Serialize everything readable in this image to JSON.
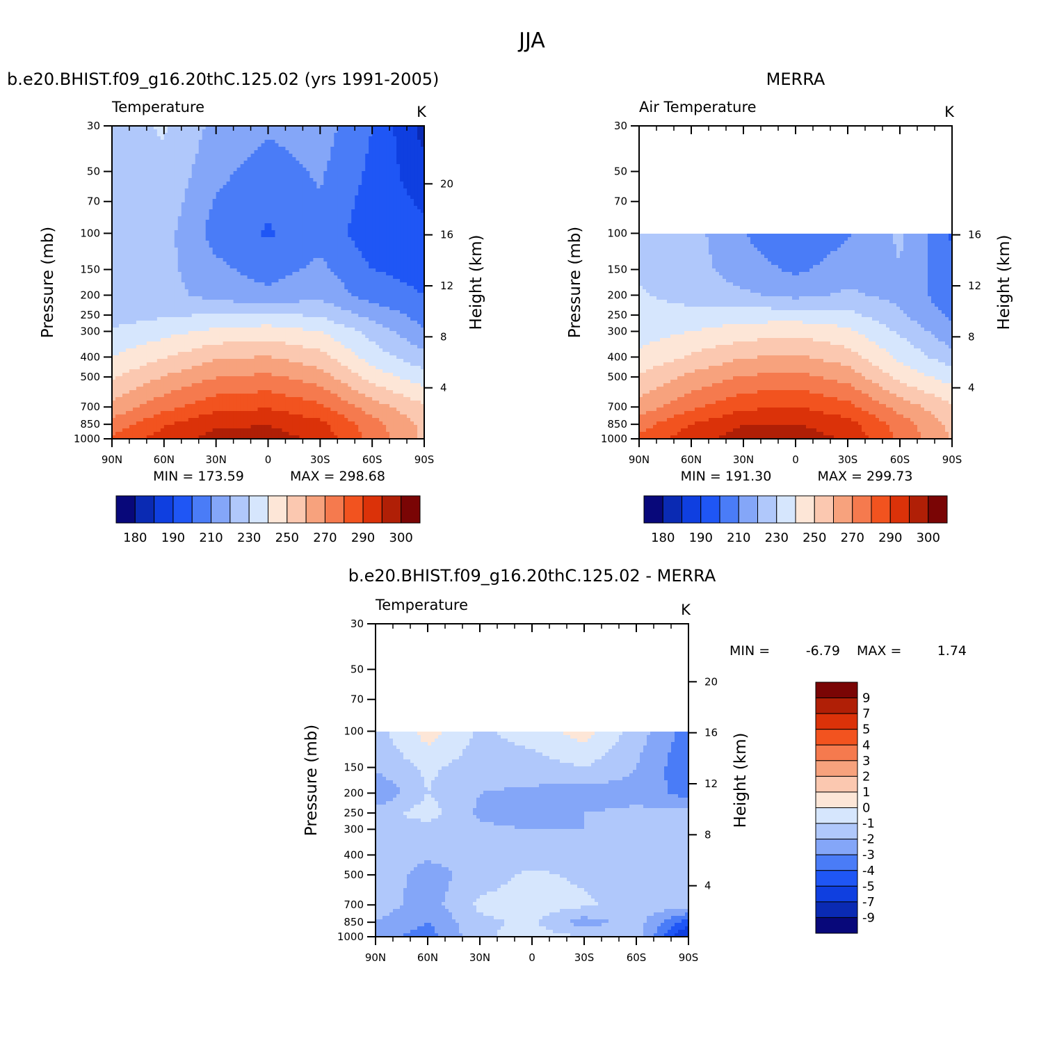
{
  "figure": {
    "title": "JJA"
  },
  "palettes": {
    "abs": [
      "#08087a",
      "#0a2ab3",
      "#0f3fe0",
      "#1f56f5",
      "#4a7cf7",
      "#84a6f8",
      "#b0c8fb",
      "#d6e6fd",
      "#fde6d7",
      "#fbc8b0",
      "#f7a27d",
      "#f57a4e",
      "#f2531f",
      "#db3209",
      "#b01f06",
      "#7a0505"
    ],
    "diff": [
      "#7a0505",
      "#b01f06",
      "#db3209",
      "#f2531f",
      "#f57a4e",
      "#f7a27d",
      "#fbc8b0",
      "#fde6d7",
      "#d6e6fd",
      "#b0c8fb",
      "#84a6f8",
      "#4a7cf7",
      "#1f56f5",
      "#0f3fe0",
      "#0a2ab3",
      "#08087a"
    ]
  },
  "chart_data": [
    {
      "id": "model",
      "type": "heatmap",
      "title": "b.e20.BHIST.f09_g16.20thC.125.02 (yrs 1991-2005)",
      "left_label": "Temperature",
      "right_label": "K",
      "ylabel": "Pressure (mb)",
      "y2label": "Height (km)",
      "xticks": [
        "90N",
        "60N",
        "30N",
        "0",
        "30S",
        "60S",
        "90S"
      ],
      "lat": [
        90,
        60,
        30,
        0,
        -30,
        -60,
        -90
      ],
      "pressure": [
        30,
        50,
        70,
        100,
        150,
        200,
        250,
        300,
        400,
        500,
        700,
        850,
        1000
      ],
      "yticks": [
        "30",
        "50",
        "70",
        "100",
        "150",
        "200",
        "250",
        "300",
        "400",
        "500",
        "700",
        "850",
        "1000"
      ],
      "height_ticks": [
        "20",
        "16",
        "12",
        "8",
        "4"
      ],
      "units": "K",
      "values": [
        [
          228,
          232,
          220,
          215,
          218,
          205,
          184
        ],
        [
          228,
          230,
          216,
          210,
          215,
          203,
          190
        ],
        [
          228,
          228,
          213,
          207,
          213,
          201,
          195
        ],
        [
          227,
          226,
          210,
          204,
          210,
          200,
          198
        ],
        [
          227,
          225,
          216,
          210,
          216,
          205,
          202
        ],
        [
          227,
          226,
          219,
          216,
          220,
          210,
          205
        ],
        [
          228,
          230,
          232,
          233,
          230,
          220,
          210
        ],
        [
          232,
          237,
          242,
          244,
          240,
          228,
          215
        ],
        [
          240,
          248,
          256,
          258,
          252,
          236,
          225
        ],
        [
          248,
          258,
          266,
          268,
          262,
          245,
          235
        ],
        [
          260,
          272,
          281,
          283,
          277,
          262,
          250
        ],
        [
          270,
          283,
          291,
          292,
          286,
          270,
          255
        ],
        [
          276,
          288,
          296,
          297,
          290,
          272,
          256
        ]
      ],
      "cb_levels": [
        "180",
        "190",
        "210",
        "230",
        "250",
        "270",
        "290",
        "300"
      ],
      "min_label": "MIN = 173.59",
      "max_label": "MAX = 298.68"
    },
    {
      "id": "obs",
      "type": "heatmap",
      "title": "MERRA",
      "left_label": "Air Temperature",
      "right_label": "K",
      "ylabel": "Pressure (mb)",
      "y2label": "Height (km)",
      "xticks": [
        "90N",
        "60N",
        "30N",
        "0",
        "30S",
        "60S",
        "90S"
      ],
      "lat": [
        90,
        60,
        30,
        0,
        -30,
        -60,
        -90
      ],
      "pressure": [
        100,
        150,
        200,
        250,
        300,
        400,
        500,
        700,
        850,
        1000
      ],
      "yticks": [
        "30",
        "50",
        "70",
        "100",
        "150",
        "200",
        "250",
        "300",
        "400",
        "500",
        "700",
        "850",
        "1000"
      ],
      "height_ticks": [
        "16",
        "12",
        "8",
        "4"
      ],
      "units": "K",
      "values": [
        [
          230,
          226,
          214,
          206,
          213,
          224,
          204
        ],
        [
          230,
          226,
          218,
          212,
          218,
          222,
          206
        ],
        [
          232,
          228,
          224,
          220,
          224,
          220,
          208
        ],
        [
          234,
          234,
          236,
          236,
          234,
          224,
          212
        ],
        [
          236,
          240,
          244,
          246,
          242,
          230,
          216
        ],
        [
          242,
          250,
          257,
          259,
          253,
          238,
          226
        ],
        [
          250,
          260,
          267,
          269,
          263,
          246,
          236
        ],
        [
          261,
          273,
          282,
          284,
          278,
          263,
          250
        ],
        [
          271,
          284,
          292,
          293,
          287,
          271,
          255
        ],
        [
          277,
          289,
          297,
          298,
          291,
          273,
          257
        ]
      ],
      "cb_levels": [
        "180",
        "190",
        "210",
        "230",
        "250",
        "270",
        "290",
        "300"
      ],
      "min_label": "MIN = 191.30",
      "max_label": "MAX = 299.73"
    },
    {
      "id": "diff",
      "type": "heatmap",
      "title": "b.e20.BHIST.f09_g16.20thC.125.02 - MERRA",
      "left_label": "Temperature",
      "right_label": "K",
      "ylabel": "Pressure (mb)",
      "y2label": "Height (km)",
      "xticks": [
        "90N",
        "60N",
        "30N",
        "0",
        "30S",
        "60S",
        "90S"
      ],
      "lat": [
        90,
        60,
        30,
        0,
        -30,
        -60,
        -90
      ],
      "pressure": [
        100,
        150,
        200,
        250,
        300,
        400,
        500,
        700,
        850,
        1000
      ],
      "yticks": [
        "30",
        "50",
        "70",
        "100",
        "150",
        "200",
        "250",
        "300",
        "400",
        "500",
        "700",
        "850",
        "1000"
      ],
      "height_ticks": [
        "20",
        "16",
        "12",
        "8",
        "4"
      ],
      "units": "K",
      "values": [
        [
          -1.5,
          0.5,
          -1.2,
          -0.5,
          0.5,
          -1.5,
          -3.5
        ],
        [
          -1.8,
          -0.8,
          -1.5,
          -1.5,
          -1.0,
          -2.0,
          -3.8
        ],
        [
          -3.0,
          -1.0,
          -2.0,
          -2.2,
          -2.5,
          -2.3,
          -3.5
        ],
        [
          -1.5,
          -0.5,
          -2.2,
          -2.5,
          -2.0,
          -1.8,
          -1.5
        ],
        [
          -1.2,
          -1.5,
          -1.8,
          -2.0,
          -2.0,
          -1.5,
          -1.2
        ],
        [
          -1.5,
          -1.8,
          -1.5,
          -1.5,
          -1.5,
          -1.2,
          -1.0
        ],
        [
          -1.2,
          -2.5,
          -1.5,
          -0.8,
          -1.2,
          -2.0,
          -1.5
        ],
        [
          -1.5,
          -2.5,
          -0.8,
          -0.5,
          -0.8,
          -1.5,
          -1.5
        ],
        [
          -2.0,
          -3.0,
          -1.2,
          -0.8,
          -2.5,
          -1.5,
          -4.5
        ],
        [
          -2.5,
          -3.5,
          -1.2,
          -0.5,
          -1.0,
          -1.2,
          -6.5
        ]
      ],
      "cb_levels": [
        "9",
        "7",
        "5",
        "4",
        "3",
        "2",
        "1",
        "0",
        "-1",
        "-2",
        "-3",
        "-4",
        "-5",
        "-7",
        "-9"
      ],
      "min_label": "MIN =",
      "min_value": "-6.79",
      "max_label": "MAX =",
      "max_value": "1.74"
    }
  ]
}
